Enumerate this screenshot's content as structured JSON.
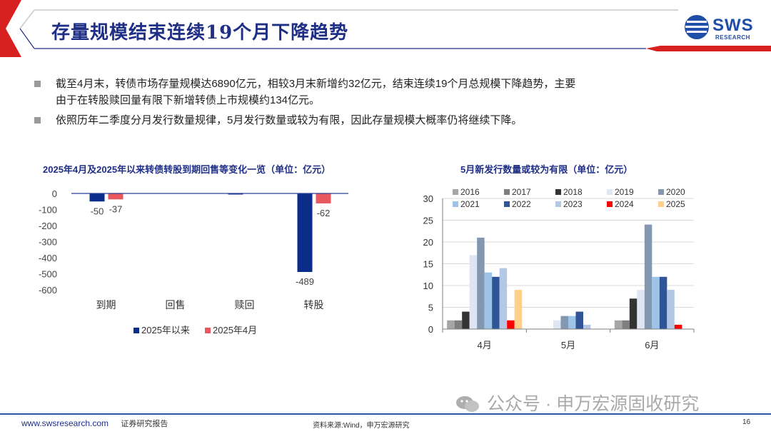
{
  "header": {
    "title": "存量规模结束连续19个月下降趋势",
    "logo_text": "SWS",
    "logo_sub": "RESEARCH"
  },
  "bullets": [
    {
      "line1": "截至4月末，转债市场存量规模达6890亿元，相较3月末新增约32亿元，结束连续19个月总规模下降趋势，主要",
      "line2": "由于在转股赎回量有限下新增转债上市规模约134亿元。"
    },
    {
      "line1": "依照历年二季度分月发行数量规律，5月发行数量或较为有限，因此存量规模大概率仍将继续下降。",
      "line2": ""
    }
  ],
  "chart_data": [
    {
      "type": "bar",
      "title": "2025年4月及2025年以来转债转股到期回售等变化一览（单位：亿元）",
      "categories": [
        "到期",
        "回售",
        "赎回",
        "转股"
      ],
      "series": [
        {
          "name": "2025年以来",
          "values": [
            -50,
            0,
            -1,
            -489
          ],
          "color": "#0a2d8c"
        },
        {
          "name": "2025年4月",
          "values": [
            -37,
            0,
            0,
            -62
          ],
          "color": "#e8585e"
        }
      ],
      "data_labels": [
        {
          "series": 0,
          "index": 0,
          "text": "-50"
        },
        {
          "series": 1,
          "index": 0,
          "text": "-37"
        },
        {
          "series": 0,
          "index": 3,
          "text": "-489"
        },
        {
          "series": 1,
          "index": 3,
          "text": "-62"
        }
      ],
      "y_ticks": [
        "0",
        "-100",
        "-200",
        "-300",
        "-400",
        "-500",
        "-600"
      ],
      "ylim": [
        -600,
        0
      ],
      "legend_position": "bottom",
      "grid": false
    },
    {
      "type": "bar",
      "title": "5月新发行数量或较为有限（单位：亿元）",
      "categories": [
        "4月",
        "5月",
        "6月"
      ],
      "series": [
        {
          "name": "2016",
          "values": [
            2,
            0,
            2
          ],
          "color": "#a6a6a6"
        },
        {
          "name": "2017",
          "values": [
            2,
            0,
            2
          ],
          "color": "#7f7f7f"
        },
        {
          "name": "2018",
          "values": [
            4,
            0,
            7
          ],
          "color": "#333333"
        },
        {
          "name": "2019",
          "values": [
            17,
            2,
            9
          ],
          "color": "#dde6f2"
        },
        {
          "name": "2020",
          "values": [
            21,
            3,
            24
          ],
          "color": "#8497b0"
        },
        {
          "name": "2021",
          "values": [
            13,
            3,
            12
          ],
          "color": "#9dc3e6"
        },
        {
          "name": "2022",
          "values": [
            12,
            4,
            12
          ],
          "color": "#2f5597"
        },
        {
          "name": "2023",
          "values": [
            14,
            1,
            9
          ],
          "color": "#b4c7e7"
        },
        {
          "name": "2024",
          "values": [
            2,
            0,
            1
          ],
          "color": "#ff0000"
        },
        {
          "name": "2025",
          "values": [
            9,
            0,
            0
          ],
          "color": "#ffd08a"
        }
      ],
      "y_ticks": [
        "0",
        "5",
        "10",
        "15",
        "20",
        "25",
        "30"
      ],
      "ylim": [
        0,
        30
      ],
      "legend_position": "top",
      "grid": true
    }
  ],
  "footer": {
    "website": "www.swsresearch.com",
    "report_type": "证券研究报告",
    "source": "资料来源:Wind，申万宏源研究",
    "page": "16",
    "watermark": "公众号 · 申万宏源固收研究"
  }
}
